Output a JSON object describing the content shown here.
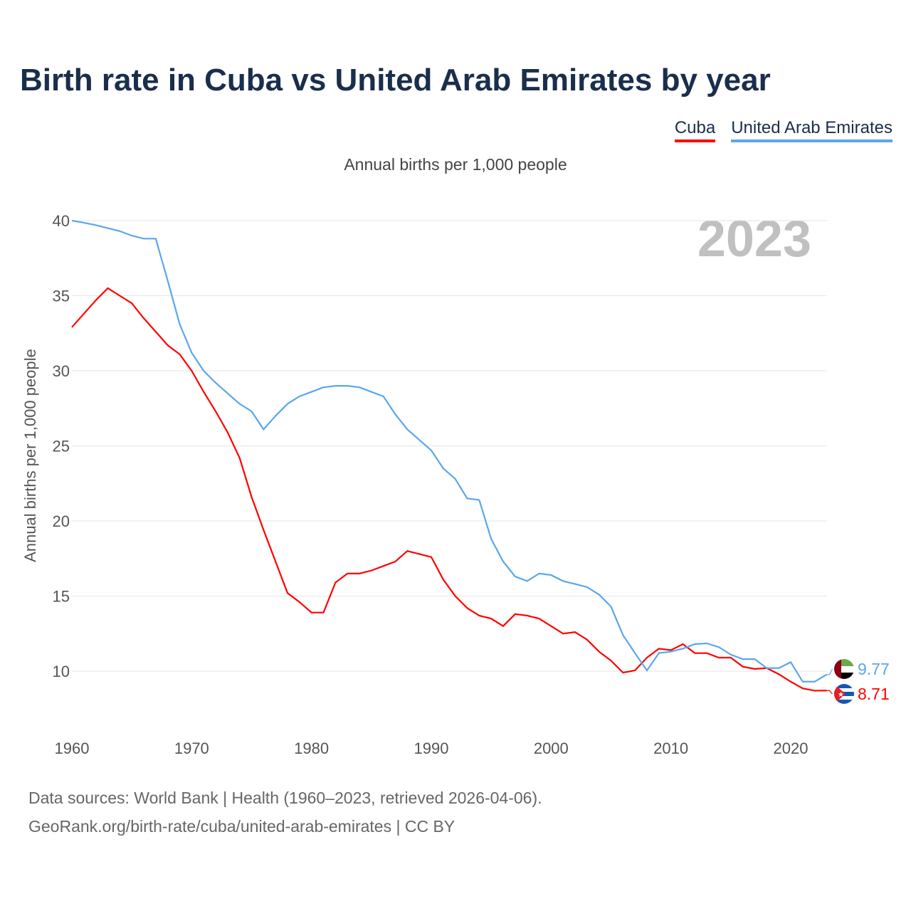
{
  "title": "Birth rate in Cuba vs United Arab Emirates by year",
  "footer": {
    "line1": "Data sources: World Bank | Health (1960–2023, retrieved 2026-04-06).",
    "line2": "GeoRank.org/birth-rate/cuba/united-arab-emirates | CC BY"
  },
  "chart_data": {
    "type": "line",
    "title": "Birth rate in Cuba vs United Arab Emirates by year",
    "subtitle": "Annual births per 1,000 people",
    "ylabel": "Annual births per 1,000 people",
    "xlabel": "",
    "year_label": "2023",
    "ylim": [
      7,
      40.5
    ],
    "xlim": [
      1960,
      2023
    ],
    "yticks": [
      10,
      15,
      20,
      25,
      30,
      35,
      40
    ],
    "xticks": [
      1960,
      1970,
      1980,
      1990,
      2000,
      2010,
      2020
    ],
    "legend": "top-right",
    "grid": true,
    "x_start": 1960,
    "series": [
      {
        "name": "Cuba",
        "color": "#ff0000",
        "end_label": "8.71",
        "flag": "cuba-flag",
        "values": [
          32.9,
          33.8,
          34.7,
          35.5,
          35.0,
          34.5,
          33.5,
          32.6,
          31.7,
          31.1,
          30.0,
          28.6,
          27.3,
          25.9,
          24.2,
          21.6,
          19.4,
          17.3,
          15.2,
          14.6,
          13.9,
          13.9,
          15.9,
          16.5,
          16.5,
          16.7,
          17.0,
          17.3,
          18.0,
          17.8,
          17.6,
          16.1,
          15.0,
          14.2,
          13.7,
          13.5,
          13.0,
          13.8,
          13.7,
          13.5,
          13.0,
          12.5,
          12.6,
          12.1,
          11.3,
          10.7,
          9.9,
          10.05,
          10.9,
          11.5,
          11.4,
          11.8,
          11.2,
          11.2,
          10.9,
          10.9,
          10.3,
          10.15,
          10.2,
          9.8,
          9.3,
          8.85,
          8.7,
          8.71
        ]
      },
      {
        "name": "United Arab Emirates",
        "color": "#5ba6ec",
        "end_label": "9.77",
        "flag": "uae-flag",
        "values": [
          40.0,
          39.86,
          39.7,
          39.5,
          39.3,
          39.0,
          38.8,
          38.8,
          36.0,
          33.1,
          31.2,
          30.0,
          29.2,
          28.5,
          27.8,
          27.3,
          26.1,
          27.0,
          27.8,
          28.3,
          28.6,
          28.9,
          29.0,
          29.0,
          28.9,
          28.6,
          28.3,
          27.1,
          26.1,
          25.4,
          24.7,
          23.5,
          22.8,
          21.5,
          21.4,
          18.8,
          17.3,
          16.3,
          16.0,
          16.5,
          16.4,
          16.0,
          15.8,
          15.6,
          15.1,
          14.3,
          12.4,
          11.2,
          10.05,
          11.2,
          11.3,
          11.5,
          11.8,
          11.85,
          11.6,
          11.1,
          10.8,
          10.8,
          10.2,
          10.2,
          10.6,
          9.3,
          9.3,
          9.77
        ]
      }
    ]
  }
}
